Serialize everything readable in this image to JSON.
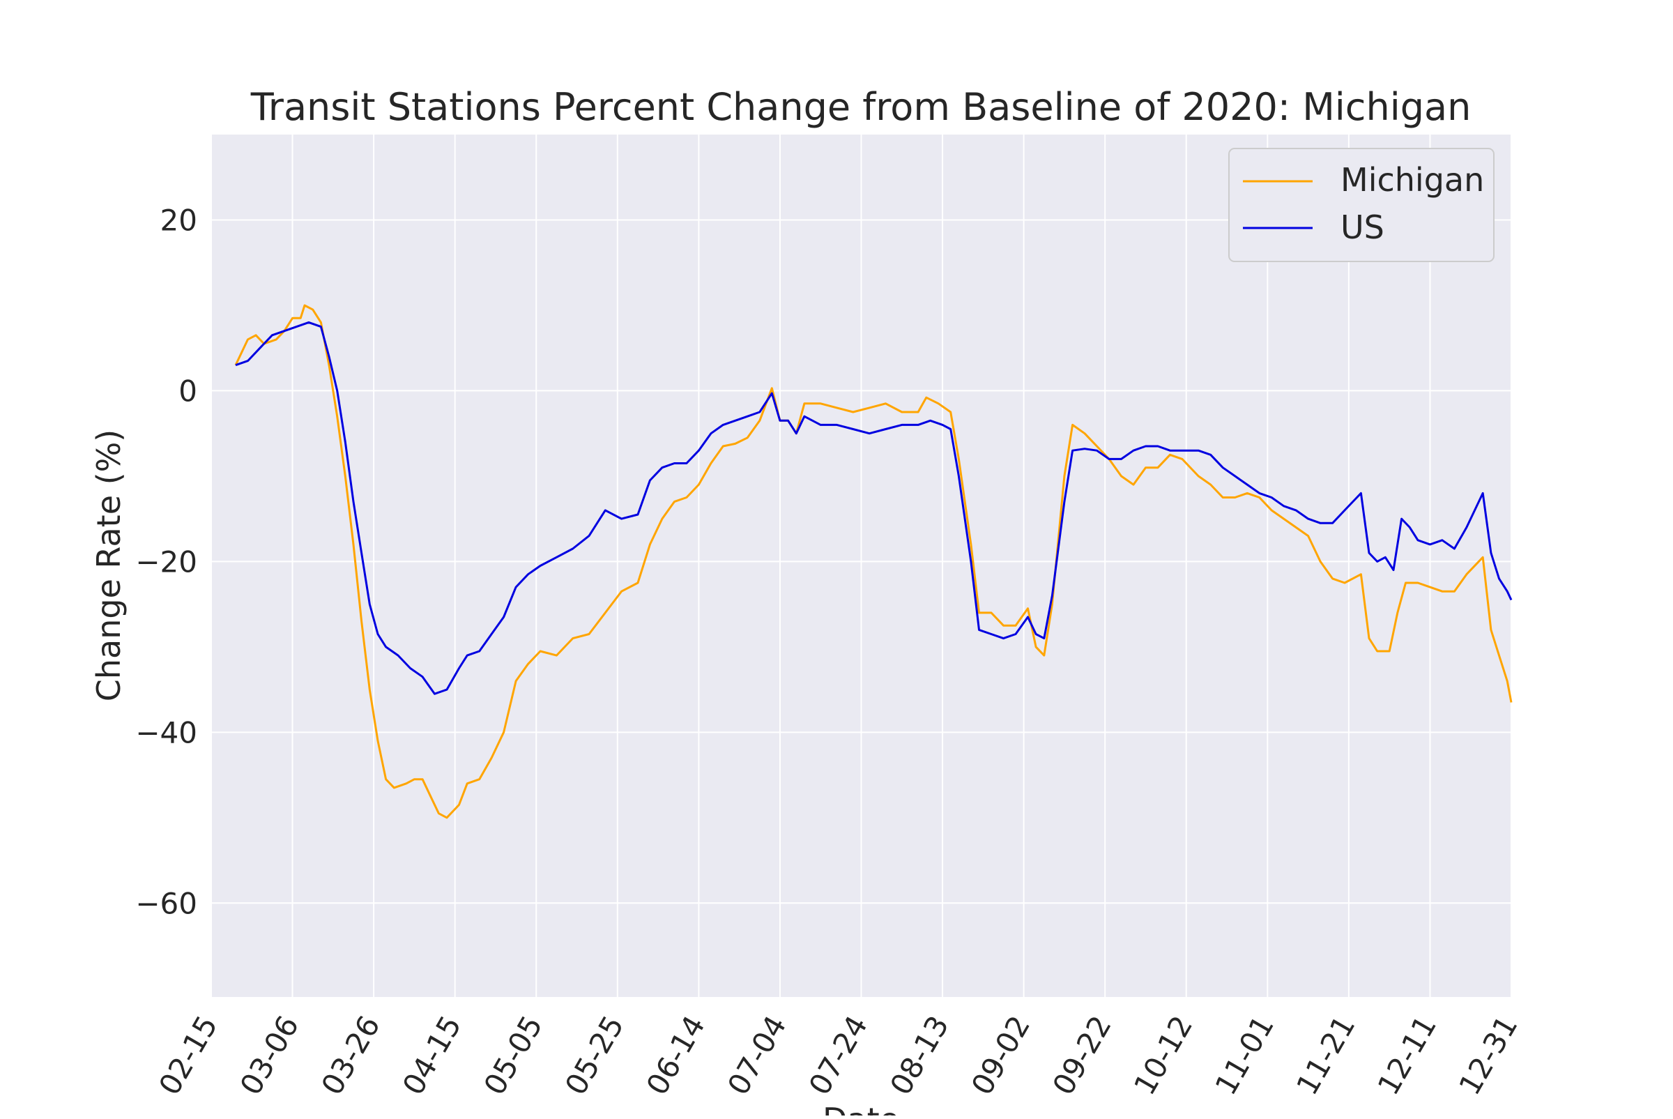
{
  "chart_data": {
    "type": "line",
    "title": "Transit Stations Percent Change from Baseline of 2020: Michigan",
    "xlabel": "Date",
    "ylabel": "Change Rate (%)",
    "x_range": [
      "02-15",
      "12-31"
    ],
    "ylim": [
      -71,
      30
    ],
    "x_ticks": [
      "02-15",
      "03-06",
      "03-26",
      "04-15",
      "05-05",
      "05-25",
      "06-14",
      "07-04",
      "07-24",
      "08-13",
      "09-02",
      "09-22",
      "10-12",
      "11-01",
      "11-21",
      "12-11",
      "12-31"
    ],
    "y_ticks": [
      20,
      0,
      -20,
      -40,
      -60
    ],
    "grid": true,
    "legend_position": "top-right",
    "colors": {
      "Michigan": "#ffa500",
      "US": "#0000e0",
      "background": "#eaeaf2",
      "grid": "#ffffff"
    },
    "series": [
      {
        "name": "Michigan",
        "color": "#ffa500",
        "points": [
          [
            "02-21",
            3
          ],
          [
            "02-24",
            6
          ],
          [
            "02-26",
            6.5
          ],
          [
            "02-28",
            5.5
          ],
          [
            "03-02",
            6
          ],
          [
            "03-04",
            7
          ],
          [
            "03-06",
            8.5
          ],
          [
            "03-08",
            8.5
          ],
          [
            "03-09",
            10
          ],
          [
            "03-11",
            9.5
          ],
          [
            "03-13",
            8
          ],
          [
            "03-15",
            3
          ],
          [
            "03-17",
            -3
          ],
          [
            "03-19",
            -10
          ],
          [
            "03-21",
            -18
          ],
          [
            "03-23",
            -27
          ],
          [
            "03-25",
            -35
          ],
          [
            "03-27",
            -41
          ],
          [
            "03-29",
            -45.5
          ],
          [
            "03-31",
            -46.5
          ],
          [
            "04-03",
            -46
          ],
          [
            "04-05",
            -45.5
          ],
          [
            "04-07",
            -45.5
          ],
          [
            "04-09",
            -47.5
          ],
          [
            "04-11",
            -49.5
          ],
          [
            "04-13",
            -50
          ],
          [
            "04-16",
            -48.5
          ],
          [
            "04-18",
            -46
          ],
          [
            "04-21",
            -45.5
          ],
          [
            "04-24",
            -43
          ],
          [
            "04-27",
            -40
          ],
          [
            "04-30",
            -34
          ],
          [
            "05-03",
            -32
          ],
          [
            "05-06",
            -30.5
          ],
          [
            "05-10",
            -31
          ],
          [
            "05-14",
            -29
          ],
          [
            "05-18",
            -28.5
          ],
          [
            "05-22",
            -26
          ],
          [
            "05-26",
            -23.5
          ],
          [
            "05-30",
            -22.5
          ],
          [
            "06-02",
            -18
          ],
          [
            "06-05",
            -15
          ],
          [
            "06-08",
            -13
          ],
          [
            "06-11",
            -12.5
          ],
          [
            "06-14",
            -11
          ],
          [
            "06-17",
            -8.5
          ],
          [
            "06-20",
            -6.5
          ],
          [
            "06-23",
            -6.2
          ],
          [
            "06-26",
            -5.5
          ],
          [
            "06-29",
            -3.5
          ],
          [
            "07-02",
            0.3
          ],
          [
            "07-04",
            -3.5
          ],
          [
            "07-06",
            -3.5
          ],
          [
            "07-08",
            -5
          ],
          [
            "07-10",
            -1.5
          ],
          [
            "07-14",
            -1.5
          ],
          [
            "07-18",
            -2
          ],
          [
            "07-22",
            -2.5
          ],
          [
            "07-26",
            -2
          ],
          [
            "07-30",
            -1.5
          ],
          [
            "08-03",
            -2.5
          ],
          [
            "08-07",
            -2.5
          ],
          [
            "08-09",
            -0.8
          ],
          [
            "08-12",
            -1.5
          ],
          [
            "08-15",
            -2.5
          ],
          [
            "08-17",
            -8
          ],
          [
            "08-20",
            -18
          ],
          [
            "08-22",
            -26
          ],
          [
            "08-25",
            -26
          ],
          [
            "08-28",
            -27.5
          ],
          [
            "08-31",
            -27.5
          ],
          [
            "09-03",
            -25.5
          ],
          [
            "09-05",
            -30
          ],
          [
            "09-07",
            -31
          ],
          [
            "09-09",
            -25
          ],
          [
            "09-12",
            -10
          ],
          [
            "09-14",
            -4
          ],
          [
            "09-17",
            -5
          ],
          [
            "09-20",
            -6.5
          ],
          [
            "09-23",
            -8
          ],
          [
            "09-26",
            -10
          ],
          [
            "09-29",
            -11
          ],
          [
            "10-02",
            -9
          ],
          [
            "10-05",
            -9
          ],
          [
            "10-08",
            -7.5
          ],
          [
            "10-11",
            -8
          ],
          [
            "10-15",
            -10
          ],
          [
            "10-18",
            -11
          ],
          [
            "10-21",
            -12.5
          ],
          [
            "10-24",
            -12.5
          ],
          [
            "10-27",
            -12
          ],
          [
            "10-30",
            -12.5
          ],
          [
            "11-02",
            -14
          ],
          [
            "11-05",
            -15
          ],
          [
            "11-08",
            -16
          ],
          [
            "11-11",
            -17
          ],
          [
            "11-14",
            -20
          ],
          [
            "11-17",
            -22
          ],
          [
            "11-20",
            -22.5
          ],
          [
            "11-24",
            -21.5
          ],
          [
            "11-26",
            -29
          ],
          [
            "11-28",
            -30.5
          ],
          [
            "12-01",
            -30.5
          ],
          [
            "12-03",
            -26
          ],
          [
            "12-05",
            -22.5
          ],
          [
            "12-08",
            -22.5
          ],
          [
            "12-11",
            -23
          ],
          [
            "12-14",
            -23.5
          ],
          [
            "12-17",
            -23.5
          ],
          [
            "12-20",
            -21.5
          ],
          [
            "12-24",
            -19.5
          ],
          [
            "12-26",
            -28
          ],
          [
            "12-28",
            -31
          ],
          [
            "12-30",
            -34
          ],
          [
            "12-31",
            -36.5
          ]
        ]
      },
      {
        "name": "US",
        "color": "#0000e0",
        "points": [
          [
            "02-21",
            3
          ],
          [
            "02-24",
            3.5
          ],
          [
            "02-27",
            5
          ],
          [
            "03-01",
            6.5
          ],
          [
            "03-04",
            7
          ],
          [
            "03-07",
            7.5
          ],
          [
            "03-10",
            8
          ],
          [
            "03-13",
            7.5
          ],
          [
            "03-15",
            4
          ],
          [
            "03-17",
            0
          ],
          [
            "03-19",
            -6
          ],
          [
            "03-21",
            -13
          ],
          [
            "03-23",
            -19
          ],
          [
            "03-25",
            -25
          ],
          [
            "03-27",
            -28.5
          ],
          [
            "03-29",
            -30
          ],
          [
            "04-01",
            -31
          ],
          [
            "04-04",
            -32.5
          ],
          [
            "04-07",
            -33.5
          ],
          [
            "04-10",
            -35.5
          ],
          [
            "04-13",
            -35
          ],
          [
            "04-16",
            -32.5
          ],
          [
            "04-18",
            -31
          ],
          [
            "04-21",
            -30.5
          ],
          [
            "04-24",
            -28.5
          ],
          [
            "04-27",
            -26.5
          ],
          [
            "04-30",
            -23
          ],
          [
            "05-03",
            -21.5
          ],
          [
            "05-06",
            -20.5
          ],
          [
            "05-10",
            -19.5
          ],
          [
            "05-14",
            -18.5
          ],
          [
            "05-18",
            -17
          ],
          [
            "05-22",
            -14
          ],
          [
            "05-26",
            -15
          ],
          [
            "05-30",
            -14.5
          ],
          [
            "06-02",
            -10.5
          ],
          [
            "06-05",
            -9
          ],
          [
            "06-08",
            -8.5
          ],
          [
            "06-11",
            -8.5
          ],
          [
            "06-14",
            -7
          ],
          [
            "06-17",
            -5
          ],
          [
            "06-20",
            -4
          ],
          [
            "06-23",
            -3.5
          ],
          [
            "06-26",
            -3
          ],
          [
            "06-29",
            -2.5
          ],
          [
            "07-02",
            -0.3
          ],
          [
            "07-04",
            -3.5
          ],
          [
            "07-06",
            -3.5
          ],
          [
            "07-08",
            -5
          ],
          [
            "07-10",
            -3
          ],
          [
            "07-14",
            -4
          ],
          [
            "07-18",
            -4
          ],
          [
            "07-22",
            -4.5
          ],
          [
            "07-26",
            -5
          ],
          [
            "07-30",
            -4.5
          ],
          [
            "08-03",
            -4
          ],
          [
            "08-07",
            -4
          ],
          [
            "08-10",
            -3.5
          ],
          [
            "08-13",
            -4
          ],
          [
            "08-15",
            -4.5
          ],
          [
            "08-17",
            -10
          ],
          [
            "08-20",
            -20
          ],
          [
            "08-22",
            -28
          ],
          [
            "08-25",
            -28.5
          ],
          [
            "08-28",
            -29
          ],
          [
            "08-31",
            -28.5
          ],
          [
            "09-03",
            -26.5
          ],
          [
            "09-05",
            -28.5
          ],
          [
            "09-07",
            -29
          ],
          [
            "09-09",
            -24
          ],
          [
            "09-12",
            -13
          ],
          [
            "09-14",
            -7
          ],
          [
            "09-17",
            -6.8
          ],
          [
            "09-20",
            -7
          ],
          [
            "09-23",
            -8
          ],
          [
            "09-26",
            -8
          ],
          [
            "09-29",
            -7
          ],
          [
            "10-02",
            -6.5
          ],
          [
            "10-05",
            -6.5
          ],
          [
            "10-08",
            -7
          ],
          [
            "10-11",
            -7
          ],
          [
            "10-15",
            -7
          ],
          [
            "10-18",
            -7.5
          ],
          [
            "10-21",
            -9
          ],
          [
            "10-24",
            -10
          ],
          [
            "10-27",
            -11
          ],
          [
            "10-30",
            -12
          ],
          [
            "11-02",
            -12.5
          ],
          [
            "11-05",
            -13.5
          ],
          [
            "11-08",
            -14
          ],
          [
            "11-11",
            -15
          ],
          [
            "11-14",
            -15.5
          ],
          [
            "11-17",
            -15.5
          ],
          [
            "11-20",
            -14
          ],
          [
            "11-24",
            -12
          ],
          [
            "11-26",
            -19
          ],
          [
            "11-28",
            -20
          ],
          [
            "11-30",
            -19.5
          ],
          [
            "12-02",
            -21
          ],
          [
            "12-04",
            -15
          ],
          [
            "12-06",
            -16
          ],
          [
            "12-08",
            -17.5
          ],
          [
            "12-11",
            -18
          ],
          [
            "12-14",
            -17.5
          ],
          [
            "12-17",
            -18.5
          ],
          [
            "12-20",
            -16
          ],
          [
            "12-24",
            -12
          ],
          [
            "12-26",
            -19
          ],
          [
            "12-28",
            -22
          ],
          [
            "12-30",
            -23.5
          ],
          [
            "12-31",
            -24.5
          ]
        ]
      }
    ]
  }
}
